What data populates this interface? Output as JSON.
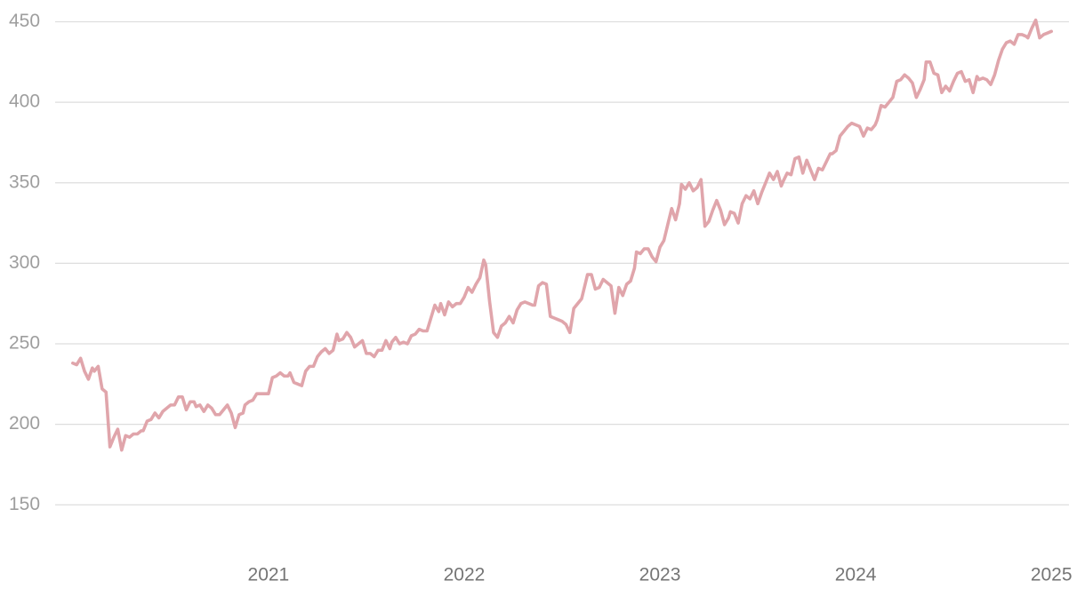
{
  "chart_data": {
    "type": "line",
    "xlim": [
      2019.91,
      2025.09
    ],
    "xticks": [
      2021,
      2022,
      2023,
      2024,
      2025
    ],
    "ylim": [
      118.7,
      463.5
    ],
    "yticks": [
      150,
      200,
      250,
      300,
      350,
      400,
      450
    ],
    "grid": true,
    "series": [
      {
        "color": "#e0a5ab",
        "x": [
          2020,
          2020.02,
          2020.04,
          2020.06,
          2020.08,
          2020.1,
          2020.11,
          2020.13,
          2020.15,
          2020.17,
          2020.19,
          2020.21,
          2020.23,
          2020.25,
          2020.27,
          2020.29,
          2020.31,
          2020.33,
          2020.35,
          2020.36,
          2020.38,
          2020.4,
          2020.42,
          2020.44,
          2020.46,
          2020.48,
          2020.5,
          2020.52,
          2020.54,
          2020.56,
          2020.58,
          2020.6,
          2020.62,
          2020.63,
          2020.65,
          2020.67,
          2020.69,
          2020.71,
          2020.73,
          2020.75,
          2020.77,
          2020.79,
          2020.81,
          2020.83,
          2020.85,
          2020.87,
          2020.88,
          2020.9,
          2020.92,
          2020.94,
          2020.96,
          2020.98,
          2021,
          2021.02,
          2021.04,
          2021.06,
          2021.08,
          2021.1,
          2021.11,
          2021.13,
          2021.15,
          2021.17,
          2021.19,
          2021.21,
          2021.23,
          2021.25,
          2021.27,
          2021.29,
          2021.31,
          2021.33,
          2021.35,
          2021.36,
          2021.38,
          2021.4,
          2021.42,
          2021.44,
          2021.46,
          2021.48,
          2021.5,
          2021.52,
          2021.54,
          2021.56,
          2021.58,
          2021.6,
          2021.62,
          2021.63,
          2021.65,
          2021.67,
          2021.69,
          2021.71,
          2021.73,
          2021.75,
          2021.77,
          2021.79,
          2021.81,
          2021.83,
          2021.85,
          2021.87,
          2021.88,
          2021.9,
          2021.92,
          2021.94,
          2021.96,
          2021.98,
          2022,
          2022.02,
          2022.04,
          2022.06,
          2022.08,
          2022.1,
          2022.11,
          2022.13,
          2022.15,
          2022.17,
          2022.19,
          2022.21,
          2022.23,
          2022.25,
          2022.27,
          2022.29,
          2022.31,
          2022.33,
          2022.35,
          2022.36,
          2022.38,
          2022.4,
          2022.42,
          2022.44,
          2022.46,
          2022.48,
          2022.5,
          2022.52,
          2022.54,
          2022.56,
          2022.58,
          2022.6,
          2022.62,
          2022.63,
          2022.65,
          2022.67,
          2022.69,
          2022.71,
          2022.73,
          2022.75,
          2022.77,
          2022.79,
          2022.81,
          2022.83,
          2022.85,
          2022.87,
          2022.88,
          2022.9,
          2022.92,
          2022.94,
          2022.96,
          2022.98,
          2023,
          2023.02,
          2023.04,
          2023.06,
          2023.08,
          2023.1,
          2023.11,
          2023.13,
          2023.15,
          2023.17,
          2023.19,
          2023.21,
          2023.23,
          2023.25,
          2023.27,
          2023.29,
          2023.31,
          2023.33,
          2023.35,
          2023.36,
          2023.38,
          2023.4,
          2023.42,
          2023.44,
          2023.46,
          2023.48,
          2023.5,
          2023.52,
          2023.54,
          2023.56,
          2023.58,
          2023.6,
          2023.62,
          2023.63,
          2023.65,
          2023.67,
          2023.69,
          2023.71,
          2023.73,
          2023.75,
          2023.77,
          2023.79,
          2023.81,
          2023.83,
          2023.85,
          2023.87,
          2023.88,
          2023.9,
          2023.92,
          2023.94,
          2023.96,
          2023.98,
          2024,
          2024.02,
          2024.04,
          2024.06,
          2024.08,
          2024.1,
          2024.11,
          2024.13,
          2024.15,
          2024.17,
          2024.19,
          2024.21,
          2024.23,
          2024.25,
          2024.27,
          2024.29,
          2024.31,
          2024.33,
          2024.35,
          2024.36,
          2024.38,
          2024.4,
          2024.42,
          2024.44,
          2024.46,
          2024.48,
          2024.5,
          2024.52,
          2024.54,
          2024.56,
          2024.58,
          2024.6,
          2024.62,
          2024.63,
          2024.65,
          2024.67,
          2024.69,
          2024.71,
          2024.73,
          2024.75,
          2024.77,
          2024.79,
          2024.81,
          2024.83,
          2024.85,
          2024.87,
          2024.88,
          2024.9,
          2024.92,
          2024.94,
          2024.96,
          2024.98,
          2025
        ],
        "values": [
          238,
          237,
          241,
          233,
          228,
          235,
          233,
          236,
          222,
          220,
          186,
          192,
          197,
          184,
          193,
          192,
          194,
          194,
          196,
          196,
          202,
          203,
          207,
          204,
          208,
          210,
          212,
          212,
          217,
          217,
          209,
          214,
          214,
          211,
          212,
          208,
          212,
          210,
          206,
          206,
          209,
          212,
          207,
          198,
          206,
          207,
          212,
          214,
          215,
          219,
          219,
          219,
          219,
          229,
          230,
          232,
          230,
          230,
          232,
          226,
          225,
          224,
          233,
          236,
          236,
          242,
          245,
          247,
          244,
          246,
          256,
          252,
          253,
          257,
          254,
          248,
          250,
          252,
          244,
          244,
          242,
          246,
          246,
          252,
          247,
          251,
          254,
          250,
          251,
          250,
          255,
          256,
          259,
          258,
          258,
          266,
          274,
          270,
          275,
          268,
          276,
          273,
          275,
          275,
          279,
          285,
          282,
          287,
          291,
          302,
          299,
          276,
          257,
          254,
          261,
          263,
          267,
          263,
          271,
          275,
          276,
          275,
          274,
          274,
          286,
          288,
          287,
          267,
          266,
          265,
          264,
          262,
          257,
          272,
          275,
          278,
          288,
          293,
          293,
          284,
          285,
          290,
          288,
          286,
          269,
          285,
          280,
          287,
          289,
          297,
          307,
          306,
          309,
          309,
          304,
          301,
          310,
          314,
          324,
          334,
          327,
          337,
          349,
          346,
          350,
          345,
          347,
          352,
          323,
          326,
          333,
          339,
          333,
          324,
          328,
          332,
          331,
          325,
          337,
          342,
          340,
          345,
          337,
          344,
          350,
          356,
          352,
          357,
          348,
          351,
          356,
          355,
          365,
          366,
          356,
          364,
          358,
          352,
          359,
          358,
          363,
          368,
          368,
          370,
          379,
          382,
          385,
          387,
          386,
          385,
          379,
          384,
          383,
          386,
          389,
          398,
          397,
          400,
          403,
          413,
          414,
          417,
          415,
          412,
          403,
          408,
          414,
          425,
          425,
          418,
          417,
          406,
          410,
          407,
          413,
          418,
          419,
          413,
          414,
          406,
          416,
          414,
          415,
          414,
          411,
          417,
          426,
          433,
          437,
          438,
          436,
          442,
          442,
          441,
          440,
          446,
          451,
          440,
          442,
          443,
          444
        ]
      }
    ]
  }
}
